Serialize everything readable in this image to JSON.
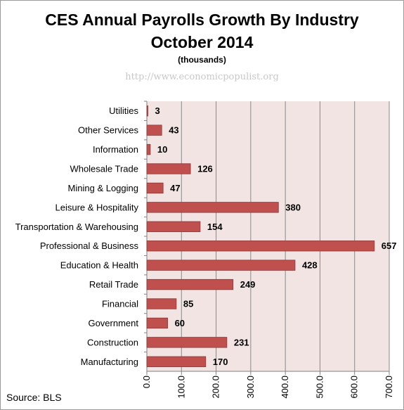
{
  "title_line1": "CES Annual Payrolls Growth By Industry",
  "title_line2": "October 2014",
  "subtitle": "(thousands)",
  "watermark": "http://www.economicpopulist.org",
  "source": "Source:  BLS",
  "colors": {
    "bar_fill": "#c0504d",
    "bar_stroke": "#8c3836",
    "plot_background": "#f2e4e3",
    "gridline": "#8a8a8a"
  },
  "chart_data": {
    "type": "bar",
    "orientation": "horizontal",
    "categories": [
      "Utilities",
      "Other Services",
      "Information",
      "Wholesale Trade",
      "Mining & Logging",
      "Leisure & Hospitality",
      "Transportation & Warehousing",
      "Professional & Business",
      "Education & Health",
      "Retail Trade",
      "Financial",
      "Government",
      "Construction",
      "Manufacturing"
    ],
    "values": [
      3,
      43,
      10,
      126,
      47,
      380,
      154,
      657,
      428,
      249,
      85,
      60,
      231,
      170
    ],
    "data_labels": [
      "3",
      "43",
      "10",
      "126",
      "47",
      "380",
      "154",
      "657",
      "428",
      "249",
      "85",
      "60",
      "231",
      "170"
    ],
    "xlim": [
      0,
      700
    ],
    "x_ticks": [
      0,
      100,
      200,
      300,
      400,
      500,
      600,
      700
    ],
    "x_tick_labels": [
      "0.0",
      "100.0",
      "200.0",
      "300.0",
      "400.0",
      "500.0",
      "600.0",
      "700.0"
    ],
    "x_tick_label_rotation": "vertical",
    "gridlines": true,
    "legend": "none"
  }
}
